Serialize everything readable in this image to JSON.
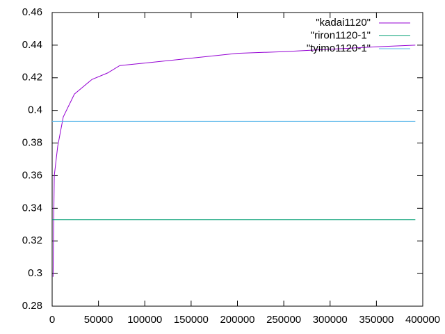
{
  "chart_data": {
    "type": "line",
    "xlim": [
      0,
      400000
    ],
    "ylim": [
      0.28,
      0.46
    ],
    "xticks": [
      0,
      50000,
      100000,
      150000,
      200000,
      250000,
      300000,
      350000,
      400000
    ],
    "yticks": [
      0.28,
      0.3,
      0.32,
      0.34,
      0.36,
      0.38,
      0.4,
      0.42,
      0.44,
      0.46
    ],
    "grid": false,
    "legend": "top-right",
    "series": [
      {
        "name": "\"kadai1120\"",
        "color": "#9400d3",
        "x": [
          1000,
          2300,
          6000,
          12000,
          24000,
          43000,
          60000,
          73000,
          100000,
          150000,
          200000,
          250000,
          300000,
          350000,
          392000
        ],
        "values": [
          0.298,
          0.36,
          0.378,
          0.396,
          0.41,
          0.419,
          0.423,
          0.4275,
          0.429,
          0.432,
          0.435,
          0.436,
          0.4375,
          0.439,
          0.44
        ]
      },
      {
        "name": "\"riron1120-1\"",
        "color": "#009e73",
        "x": [
          0,
          392000
        ],
        "values": [
          0.333,
          0.333
        ]
      },
      {
        "name": "\"tyimo1120-1\"",
        "color": "#56b4e9",
        "x": [
          0,
          392000
        ],
        "values": [
          0.3933,
          0.3933
        ]
      }
    ]
  }
}
